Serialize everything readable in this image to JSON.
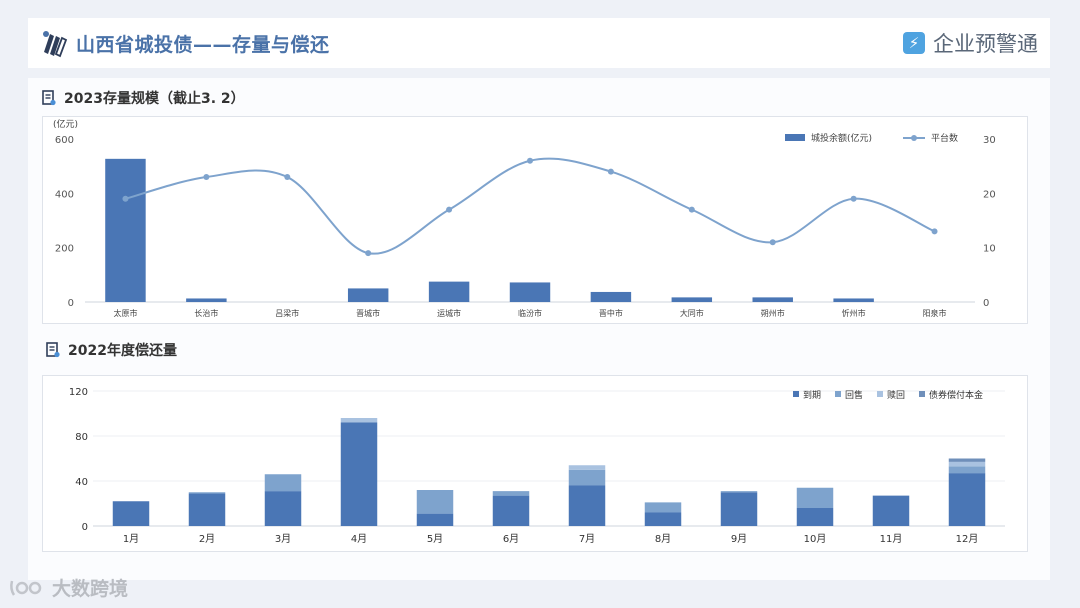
{
  "header": {
    "title": "山西省城投债——存量与偿还",
    "brand": "企业预警通",
    "brand_icon": "lightning-icon"
  },
  "section1": {
    "title": "2023存量规模（截止3. 2）"
  },
  "section2": {
    "title": "2022年度偿还量"
  },
  "watermark": {
    "text": "大数跨境"
  },
  "chart_data": [
    {
      "type": "bar+line",
      "categories": [
        "太原市",
        "长治市",
        "吕梁市",
        "晋城市",
        "运城市",
        "临汾市",
        "晋中市",
        "大同市",
        "朔州市",
        "忻州市",
        "阳泉市"
      ],
      "y_unit": "(亿元)",
      "ylim": [
        0,
        600
      ],
      "y_ticks": [
        0,
        200,
        400,
        600
      ],
      "y2lim": [
        0,
        30
      ],
      "y2_ticks": [
        0,
        10,
        20,
        30
      ],
      "series": [
        {
          "name": "城投余额(亿元)",
          "type": "bar",
          "axis": "left",
          "color": "#4a76b5",
          "values": [
            527,
            13,
            0,
            50,
            75,
            72,
            37,
            17,
            17,
            13,
            0
          ]
        },
        {
          "name": "平台数",
          "type": "line",
          "axis": "right",
          "color": "#7ea3cd",
          "smooth": true,
          "values": [
            19,
            23,
            23,
            9,
            17,
            26,
            24,
            17,
            11,
            19,
            13
          ]
        }
      ],
      "legend": "top-right",
      "grid": false
    },
    {
      "type": "bar",
      "stacked": true,
      "categories": [
        "1月",
        "2月",
        "3月",
        "4月",
        "5月",
        "6月",
        "7月",
        "8月",
        "9月",
        "10月",
        "11月",
        "12月"
      ],
      "ylim": [
        0,
        120
      ],
      "y_ticks": [
        0,
        40,
        80,
        120
      ],
      "series": [
        {
          "name": "到期",
          "color": "#4a76b5",
          "values": [
            22,
            29,
            31,
            92,
            11,
            27,
            36,
            12,
            30,
            16,
            27,
            47
          ]
        },
        {
          "name": "回售",
          "color": "#7ea3cd",
          "values": [
            0,
            1,
            15,
            0,
            21,
            4,
            14,
            9,
            1,
            18,
            0,
            6
          ]
        },
        {
          "name": "赎回",
          "color": "#a9c2e0",
          "values": [
            0,
            0,
            0,
            4,
            0,
            0,
            4,
            0,
            0,
            0,
            0,
            4
          ]
        },
        {
          "name": "债券偿付本金",
          "color": "#6f8fba",
          "values": [
            0,
            0,
            0,
            0,
            0,
            0,
            0,
            0,
            0,
            0,
            0,
            3
          ]
        }
      ],
      "legend": "top-right",
      "grid": true
    }
  ]
}
